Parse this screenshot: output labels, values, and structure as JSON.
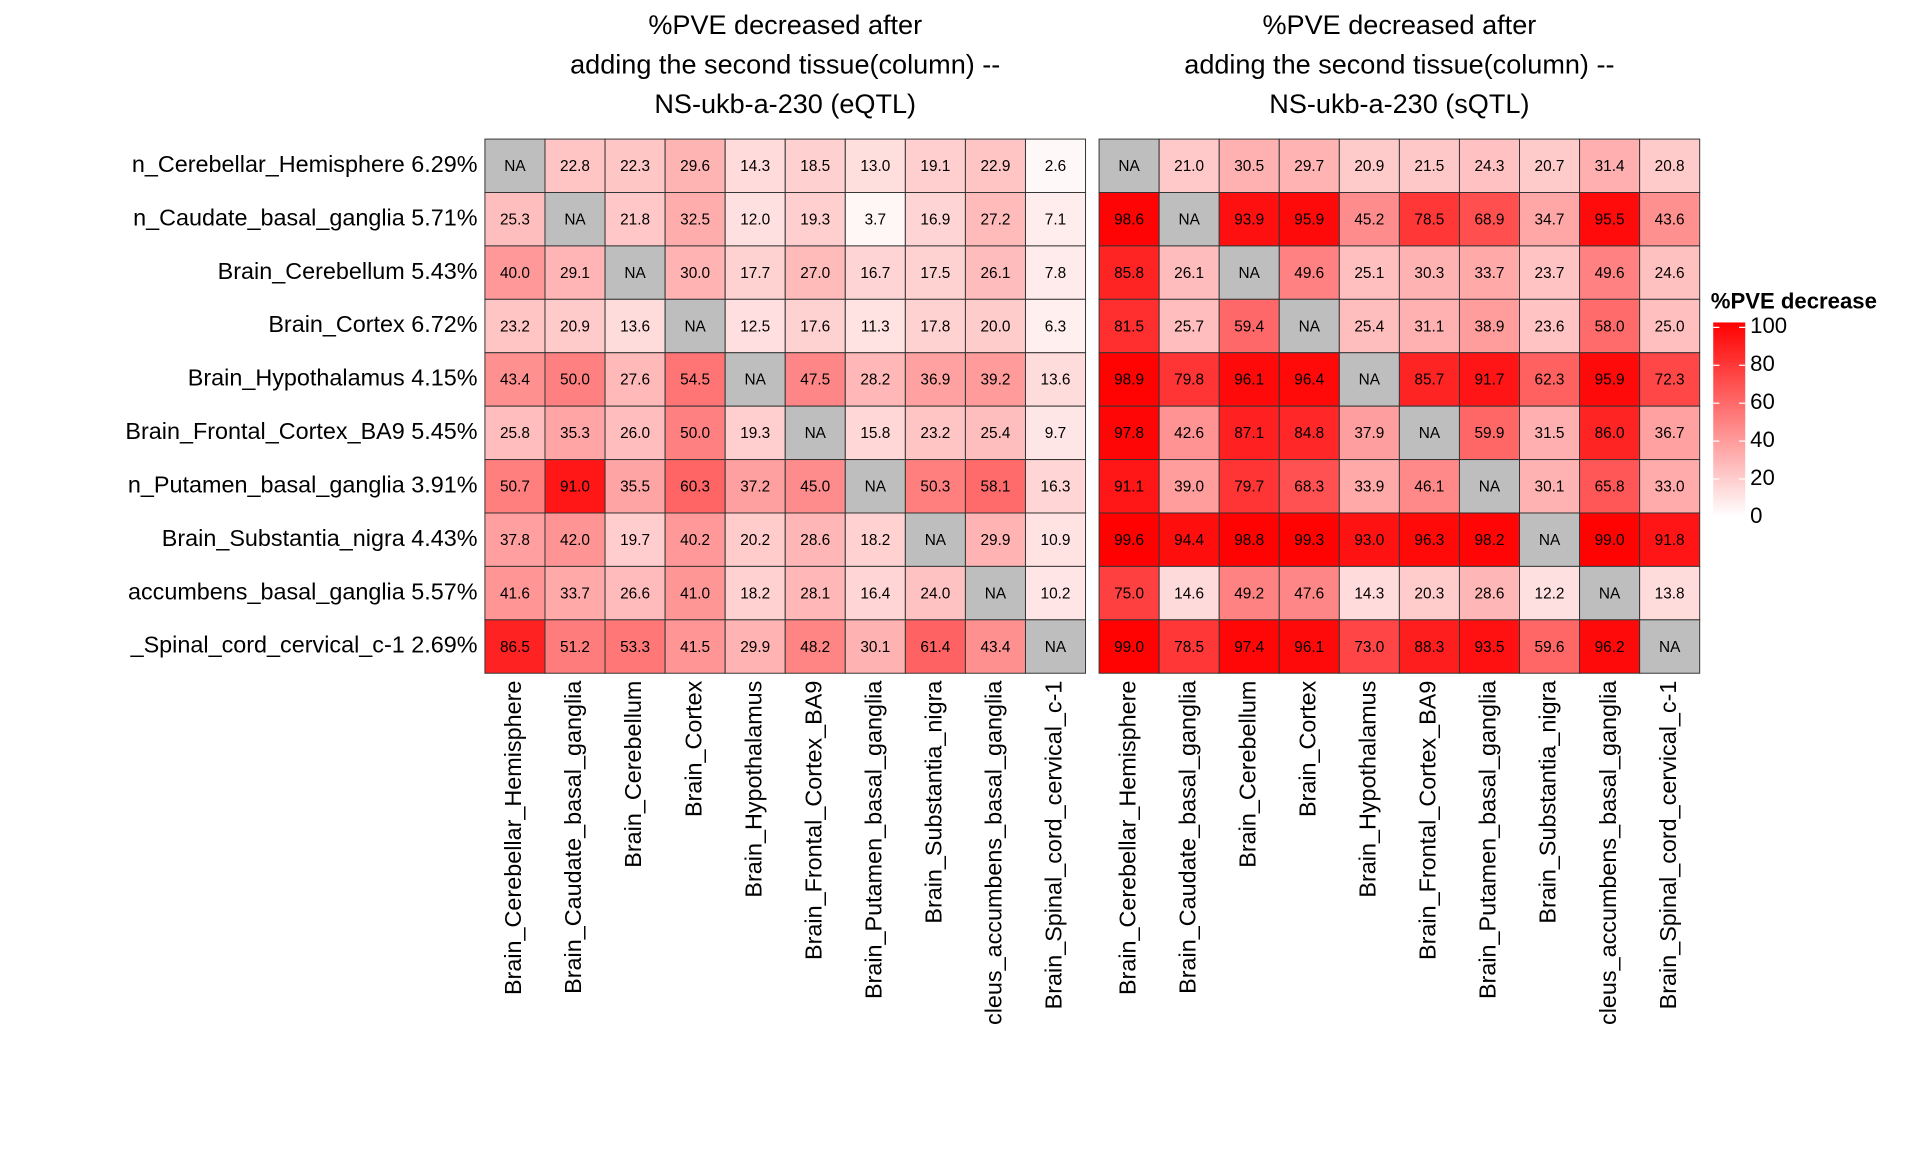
{
  "chart_data": [
    {
      "type": "heatmap",
      "title": [
        "%PVE decreased after",
        "adding the second tissue(column) --",
        "NS-ukb-a-230 (eQTL)"
      ],
      "rows": [
        "n_Cerebellar_Hemisphere 6.29%",
        "n_Caudate_basal_ganglia 5.71%",
        "Brain_Cerebellum 5.43%",
        "Brain_Cortex 6.72%",
        "Brain_Hypothalamus 4.15%",
        "Brain_Frontal_Cortex_BA9 5.45%",
        "n_Putamen_basal_ganglia 3.91%",
        "Brain_Substantia_nigra 4.43%",
        "accumbens_basal_ganglia 5.57%",
        "_Spinal_cord_cervical_c-1 2.69%"
      ],
      "categories": [
        "Brain_Cerebellar_Hemisphere",
        "Brain_Caudate_basal_ganglia",
        "Brain_Cerebellum",
        "Brain_Cortex",
        "Brain_Hypothalamus",
        "Brain_Frontal_Cortex_BA9",
        "Brain_Putamen_basal_ganglia",
        "Brain_Substantia_nigra",
        "cleus_accumbens_basal_ganglia",
        "Brain_Spinal_cord_cervical_c-1"
      ],
      "values": [
        [
          null,
          22.8,
          22.3,
          29.6,
          14.3,
          18.5,
          13.0,
          19.1,
          22.9,
          2.6
        ],
        [
          25.3,
          null,
          21.8,
          32.5,
          12.0,
          19.3,
          3.7,
          16.9,
          27.2,
          7.1
        ],
        [
          40.0,
          29.1,
          null,
          30.0,
          17.7,
          27.0,
          16.7,
          17.5,
          26.1,
          7.8
        ],
        [
          23.2,
          20.9,
          13.6,
          null,
          12.5,
          17.6,
          11.3,
          17.8,
          20.0,
          6.3
        ],
        [
          43.4,
          50.0,
          27.6,
          54.5,
          null,
          47.5,
          28.2,
          36.9,
          39.2,
          13.6
        ],
        [
          25.8,
          35.3,
          26.0,
          50.0,
          19.3,
          null,
          15.8,
          23.2,
          25.4,
          9.7
        ],
        [
          50.7,
          91.0,
          35.5,
          60.3,
          37.2,
          45.0,
          null,
          50.3,
          58.1,
          16.3
        ],
        [
          37.8,
          42.0,
          19.7,
          40.2,
          20.2,
          28.6,
          18.2,
          null,
          29.9,
          10.9
        ],
        [
          41.6,
          33.7,
          26.6,
          41.0,
          18.2,
          28.1,
          16.4,
          24.0,
          null,
          10.2
        ],
        [
          86.5,
          51.2,
          53.3,
          41.5,
          29.9,
          48.2,
          30.1,
          61.4,
          43.4,
          null
        ]
      ],
      "value_labels": [
        [
          "NA",
          "22.8",
          "22.3",
          "29.6",
          "14.3",
          "18.5",
          "13.0",
          "19.1",
          "22.9",
          "2.6"
        ],
        [
          "25.3",
          "NA",
          "21.8",
          "32.5",
          "12.0",
          "19.3",
          "3.7",
          "16.9",
          "27.2",
          "7.1"
        ],
        [
          "40.0",
          "29.1",
          "NA",
          "30.0",
          "17.7",
          "27.0",
          "16.7",
          "17.5",
          "26.1",
          "7.8"
        ],
        [
          "23.2",
          "20.9",
          "13.6",
          "NA",
          "12.5",
          "17.6",
          "11.3",
          "17.8",
          "20.0",
          "6.3"
        ],
        [
          "43.4",
          "50.0",
          "27.6",
          "54.5",
          "NA",
          "47.5",
          "28.2",
          "36.9",
          "39.2",
          "13.6"
        ],
        [
          "25.8",
          "35.3",
          "26.0",
          "50.0",
          "19.3",
          "NA",
          "15.8",
          "23.2",
          "25.4",
          "9.7"
        ],
        [
          "50.7",
          "91.0",
          "35.5",
          "60.3",
          "37.2",
          "45.0",
          "NA",
          "50.3",
          "58.1",
          "16.3"
        ],
        [
          "37.8",
          "42.0",
          "19.7",
          "40.2",
          "20.2",
          "28.6",
          "18.2",
          "NA",
          "29.9",
          "10.9"
        ],
        [
          "41.6",
          "33.7",
          "26.6",
          "41.0",
          "18.2",
          "28.1",
          "16.4",
          "24.0",
          "NA",
          "10.2"
        ],
        [
          "86.5",
          "51.2",
          "53.3",
          "41.5",
          "29.9",
          "48.2",
          "30.1",
          "61.4",
          "43.4",
          "NA"
        ]
      ],
      "clim": [
        0,
        100
      ],
      "low_color": "#ffffff",
      "high_color": "#ff0000",
      "na_color": "#bebebe"
    },
    {
      "type": "heatmap",
      "title": [
        "%PVE decreased after",
        "adding the second tissue(column) --",
        "NS-ukb-a-230 (sQTL)"
      ],
      "categories": [
        "Brain_Cerebellar_Hemisphere",
        "Brain_Caudate_basal_ganglia",
        "Brain_Cerebellum",
        "Brain_Cortex",
        "Brain_Hypothalamus",
        "Brain_Frontal_Cortex_BA9",
        "Brain_Putamen_basal_ganglia",
        "Brain_Substantia_nigra",
        "cleus_accumbens_basal_ganglia",
        "Brain_Spinal_cord_cervical_c-1"
      ],
      "values": [
        [
          null,
          21.0,
          30.5,
          29.7,
          20.9,
          21.5,
          24.3,
          20.7,
          31.4,
          20.8
        ],
        [
          98.6,
          null,
          93.9,
          95.9,
          45.2,
          78.5,
          68.9,
          34.7,
          95.5,
          43.6
        ],
        [
          85.8,
          26.1,
          null,
          49.6,
          25.1,
          30.3,
          33.7,
          23.7,
          49.6,
          24.6
        ],
        [
          81.5,
          25.7,
          59.4,
          null,
          25.4,
          31.1,
          38.9,
          23.6,
          58.0,
          25.0
        ],
        [
          98.9,
          79.8,
          96.1,
          96.4,
          null,
          85.7,
          91.7,
          62.3,
          95.9,
          72.3
        ],
        [
          97.8,
          42.6,
          87.1,
          84.8,
          37.9,
          null,
          59.9,
          31.5,
          86.0,
          36.7
        ],
        [
          91.1,
          39.0,
          79.7,
          68.3,
          33.9,
          46.1,
          null,
          30.1,
          65.8,
          33.0
        ],
        [
          99.6,
          94.4,
          98.8,
          99.3,
          93.0,
          96.3,
          98.2,
          null,
          99.0,
          91.8
        ],
        [
          75.0,
          14.6,
          49.2,
          47.6,
          14.3,
          20.3,
          28.6,
          12.2,
          null,
          13.8
        ],
        [
          99.0,
          78.5,
          97.4,
          96.1,
          73.0,
          88.3,
          93.5,
          59.6,
          96.2,
          null
        ]
      ],
      "value_labels": [
        [
          "NA",
          "21.0",
          "30.5",
          "29.7",
          "20.9",
          "21.5",
          "24.3",
          "20.7",
          "31.4",
          "20.8"
        ],
        [
          "98.6",
          "NA",
          "93.9",
          "95.9",
          "45.2",
          "78.5",
          "68.9",
          "34.7",
          "95.5",
          "43.6"
        ],
        [
          "85.8",
          "26.1",
          "NA",
          "49.6",
          "25.1",
          "30.3",
          "33.7",
          "23.7",
          "49.6",
          "24.6"
        ],
        [
          "81.5",
          "25.7",
          "59.4",
          "NA",
          "25.4",
          "31.1",
          "38.9",
          "23.6",
          "58.0",
          "25.0"
        ],
        [
          "98.9",
          "79.8",
          "96.1",
          "96.4",
          "NA",
          "85.7",
          "91.7",
          "62.3",
          "95.9",
          "72.3"
        ],
        [
          "97.8",
          "42.6",
          "87.1",
          "84.8",
          "37.9",
          "NA",
          "59.9",
          "31.5",
          "86.0",
          "36.7"
        ],
        [
          "91.1",
          "39.0",
          "79.7",
          "68.3",
          "33.9",
          "46.1",
          "NA",
          "30.1",
          "65.8",
          "33.0"
        ],
        [
          "99.6",
          "94.4",
          "98.8",
          "99.3",
          "93.0",
          "96.3",
          "98.2",
          "NA",
          "99.0",
          "91.8"
        ],
        [
          "75.0",
          "14.6",
          "49.2",
          "47.6",
          "14.3",
          "20.3",
          "28.6",
          "12.2",
          "NA",
          "13.8"
        ],
        [
          "99.0",
          "78.5",
          "97.4",
          "96.1",
          "73.0",
          "88.3",
          "93.5",
          "59.6",
          "96.2",
          "NA"
        ]
      ],
      "clim": [
        0,
        100
      ],
      "low_color": "#ffffff",
      "high_color": "#ff0000",
      "na_color": "#bebebe",
      "legend_title": "%PVE decrease",
      "cticks": [
        0,
        20,
        40,
        60,
        80,
        100
      ]
    }
  ]
}
